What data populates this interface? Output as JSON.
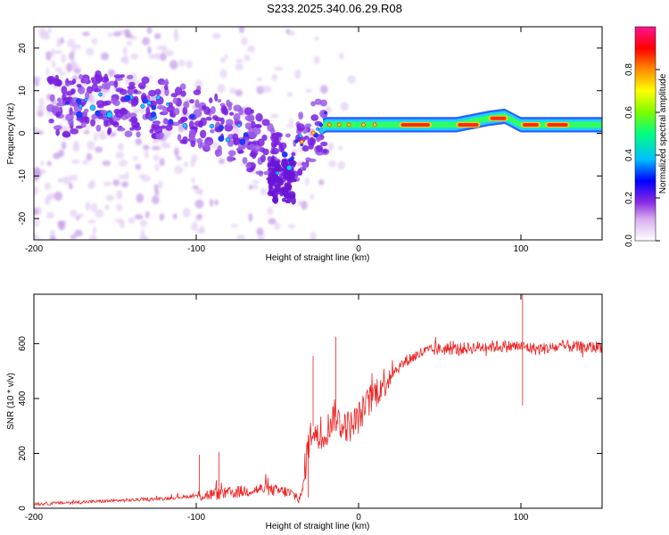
{
  "title": "S233.2025.340.06.29.R08",
  "chart_data": [
    {
      "type": "heatmap",
      "name": "spectrogram",
      "xlabel": "Height of straight line (km)",
      "ylabel": "Frequency (Hz)",
      "xlim": [
        -200,
        150
      ],
      "ylim": [
        -25,
        25
      ],
      "xticks": [
        -200,
        -100,
        0,
        100
      ],
      "yticks": [
        -20,
        -10,
        0,
        10,
        20
      ],
      "colorbar": {
        "label": "Normalized spectral amplitude",
        "range": [
          0,
          1
        ],
        "ticks": [
          "0.0",
          "0.2",
          "0.4",
          "0.6",
          "0.8"
        ],
        "colors": [
          "#ffffff",
          "#d8b0f0",
          "#8a2be2",
          "#0000ff",
          "#00bfff",
          "#00ff80",
          "#7cfc00",
          "#ffff00",
          "#ff8c00",
          "#ff0000",
          "#ff1493"
        ]
      },
      "ridge": [
        {
          "x": -190,
          "f": 6
        },
        {
          "x": -160,
          "f": 7
        },
        {
          "x": -130,
          "f": 6
        },
        {
          "x": -100,
          "f": 4
        },
        {
          "x": -80,
          "f": 1
        },
        {
          "x": -60,
          "f": -3
        },
        {
          "x": -45,
          "f": -8
        },
        {
          "x": -35,
          "f": -2
        },
        {
          "x": -25,
          "f": 1
        },
        {
          "x": -20,
          "f": 2
        },
        {
          "x": 0,
          "f": 2
        },
        {
          "x": 30,
          "f": 2
        },
        {
          "x": 60,
          "f": 2
        },
        {
          "x": 80,
          "f": 3.5
        },
        {
          "x": 90,
          "f": 4
        },
        {
          "x": 100,
          "f": 2
        },
        {
          "x": 150,
          "f": 2
        }
      ],
      "hot_segments": [
        {
          "x0": 25,
          "x1": 45,
          "f": 2
        },
        {
          "x0": 60,
          "x1": 75,
          "f": 2
        },
        {
          "x0": 80,
          "x1": 92,
          "f": 3.5
        },
        {
          "x0": 100,
          "x1": 112,
          "f": 2
        },
        {
          "x0": 115,
          "x1": 130,
          "f": 2
        }
      ]
    },
    {
      "type": "line",
      "name": "snr",
      "xlabel": "Height of straight line (km)",
      "ylabel": "SNR (10 * v/v)",
      "xlim": [
        -200,
        150
      ],
      "ylim": [
        0,
        780
      ],
      "xticks": [
        -200,
        -100,
        0,
        100
      ],
      "yticks": [
        0,
        200,
        400,
        600
      ],
      "color": "#ee2222",
      "series": [
        {
          "name": "SNR",
          "x": [
            -200,
            -180,
            -160,
            -140,
            -120,
            -100,
            -80,
            -60,
            -45,
            -35,
            -32,
            -28,
            -25,
            -20,
            -15,
            -10,
            -5,
            0,
            10,
            20,
            30,
            40,
            50,
            60,
            70,
            80,
            90,
            100,
            110,
            120,
            130,
            140,
            150
          ],
          "y": [
            15,
            20,
            25,
            30,
            35,
            45,
            55,
            70,
            60,
            35,
            200,
            300,
            250,
            280,
            340,
            300,
            300,
            330,
            420,
            490,
            540,
            570,
            580,
            580,
            585,
            590,
            590,
            590,
            580,
            585,
            590,
            585,
            590
          ],
          "spikes": [
            {
              "x": 101,
              "y": 780
            },
            {
              "x": 101,
              "y": 375
            },
            {
              "x": -14,
              "y": 625
            },
            {
              "x": -28,
              "y": 555
            },
            {
              "x": -31,
              "y": 40
            },
            {
              "x": -98,
              "y": 195
            },
            {
              "x": -86,
              "y": 205
            }
          ]
        }
      ]
    }
  ]
}
